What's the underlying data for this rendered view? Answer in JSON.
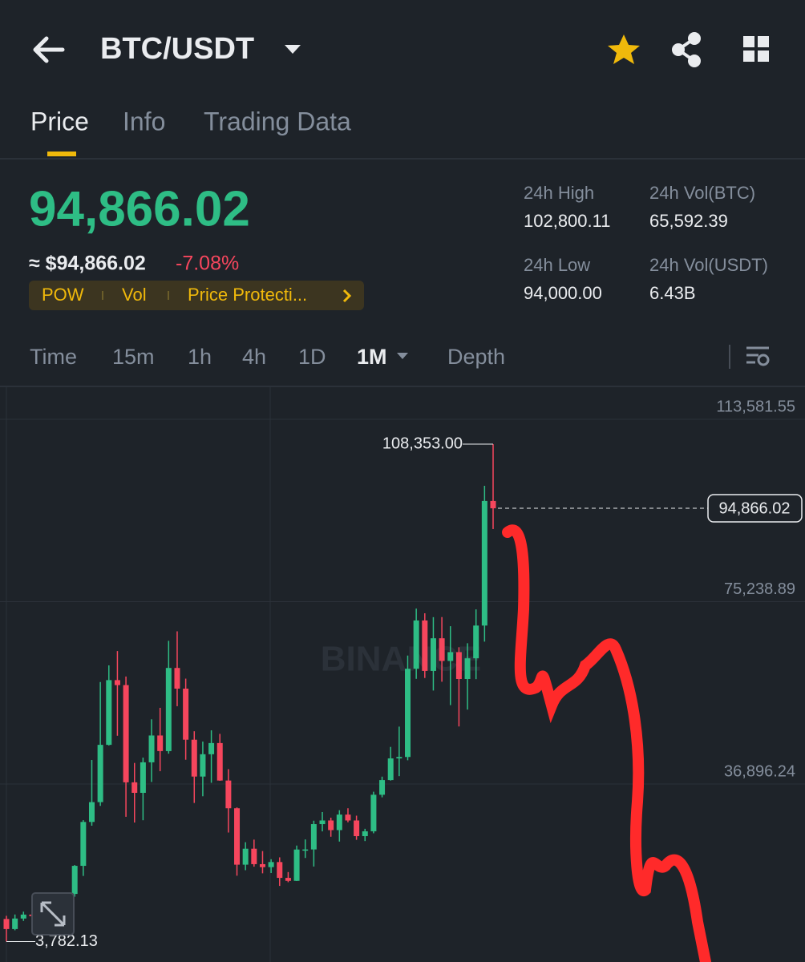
{
  "header": {
    "title": "BTC/USDT"
  },
  "tabs": [
    "Price",
    "Info",
    "Trading Data"
  ],
  "price": {
    "last": "94,866.02",
    "fiat": "≈ $94,866.02",
    "change": "-7.08%"
  },
  "tags": [
    "POW",
    "Vol",
    "Price Protecti..."
  ],
  "stats": [
    {
      "label": "24h High",
      "value": "102,800.11"
    },
    {
      "label": "24h Vol(BTC)",
      "value": "65,592.39"
    },
    {
      "label": "24h Low",
      "value": "94,000.00"
    },
    {
      "label": "24h Vol(USDT)",
      "value": "6.43B"
    }
  ],
  "intervals": [
    "Time",
    "15m",
    "1h",
    "4h",
    "1D",
    "1M",
    "Depth"
  ],
  "watermark": "BINANCE",
  "chart_data": {
    "type": "candlestick",
    "up_color": "#2ebd85",
    "down_color": "#f6465d",
    "ylim": [
      -520,
      120323
    ],
    "yticks": [
      {
        "value": 113581.55,
        "label": "113,581.55"
      },
      {
        "value": 75238.89,
        "label": "75,238.89"
      },
      {
        "value": 36896.24,
        "label": "36,896.24"
      }
    ],
    "grid": true,
    "high_marker": {
      "value": 108353,
      "label": "108,353.00"
    },
    "low_marker": {
      "value": 3782.13,
      "label": "3,782.13"
    },
    "last_price": {
      "value": 94866.02,
      "label": "94,866.02"
    },
    "open": [
      8523,
      6410,
      8620,
      9448,
      9138,
      11335,
      11650,
      10776,
      13791,
      19695,
      28923,
      33092,
      45135,
      58740,
      57697,
      37253,
      35045,
      41461,
      47100,
      43820,
      61300,
      56950,
      46216,
      38466,
      43160,
      45510,
      37630,
      31801,
      19942,
      23296,
      20048,
      19423,
      20490,
      17165,
      16541,
      23125,
      23141,
      28465,
      29233,
      27210,
      30472,
      29232,
      25940,
      26962,
      34639,
      37724,
      42283,
      42582,
      61130,
      71280,
      60672,
      67540,
      62772,
      64628,
      58974,
      63327,
      70215,
      96407
    ],
    "high": [
      9188,
      9468,
      10067,
      10380,
      11444,
      12468,
      12050,
      14100,
      19863,
      29300,
      41950,
      58352,
      61844,
      64854,
      59500,
      41330,
      42448,
      50500,
      52920,
      67000,
      69000,
      59054,
      47990,
      45821,
      48189,
      47444,
      40023,
      31986,
      24668,
      25211,
      22800,
      21085,
      21480,
      18387,
      23960,
      25250,
      29184,
      31000,
      29820,
      31389,
      31804,
      30244,
      27483,
      35280,
      38450,
      44700,
      48969,
      63913,
      73777,
      72797,
      71979,
      71997,
      70079,
      65659,
      66498,
      73620,
      99588,
      108353
    ],
    "low": [
      3782.13,
      6150,
      8117,
      8833,
      8893,
      10518,
      9825,
      10375,
      13195,
      17572,
      28130,
      32296,
      45000,
      47044,
      30000,
      28805,
      29278,
      37332,
      39600,
      43283,
      53256,
      42000,
      32917,
      34322,
      37155,
      37578,
      26700,
      17622,
      18782,
      19520,
      18125,
      18190,
      15476,
      16256,
      16500,
      21351,
      19549,
      26942,
      25811,
      24800,
      28861,
      25166,
      24901,
      26538,
      34097,
      37617,
      38555,
      41884,
      59005,
      59191,
      56552,
      58402,
      53485,
      49000,
      52550,
      58946,
      66835,
      90500
    ],
    "close": [
      6410,
      8620,
      9448,
      9138,
      11335,
      11650,
      10776,
      13791,
      19695,
      28923,
      33092,
      45135,
      58740,
      57694,
      37253,
      35045,
      41461,
      47100,
      43824,
      61300,
      56950,
      46216,
      38466,
      43160,
      45510,
      37630,
      31801,
      19942,
      23293,
      20050,
      19423,
      20490,
      17165,
      16542,
      23125,
      23141,
      28465,
      29233,
      27210,
      30472,
      29232,
      25940,
      26962,
      34639,
      37724,
      42283,
      42582,
      61130,
      71280,
      60672,
      67540,
      62772,
      64628,
      58974,
      63327,
      70215,
      96407,
      94866.02
    ]
  }
}
